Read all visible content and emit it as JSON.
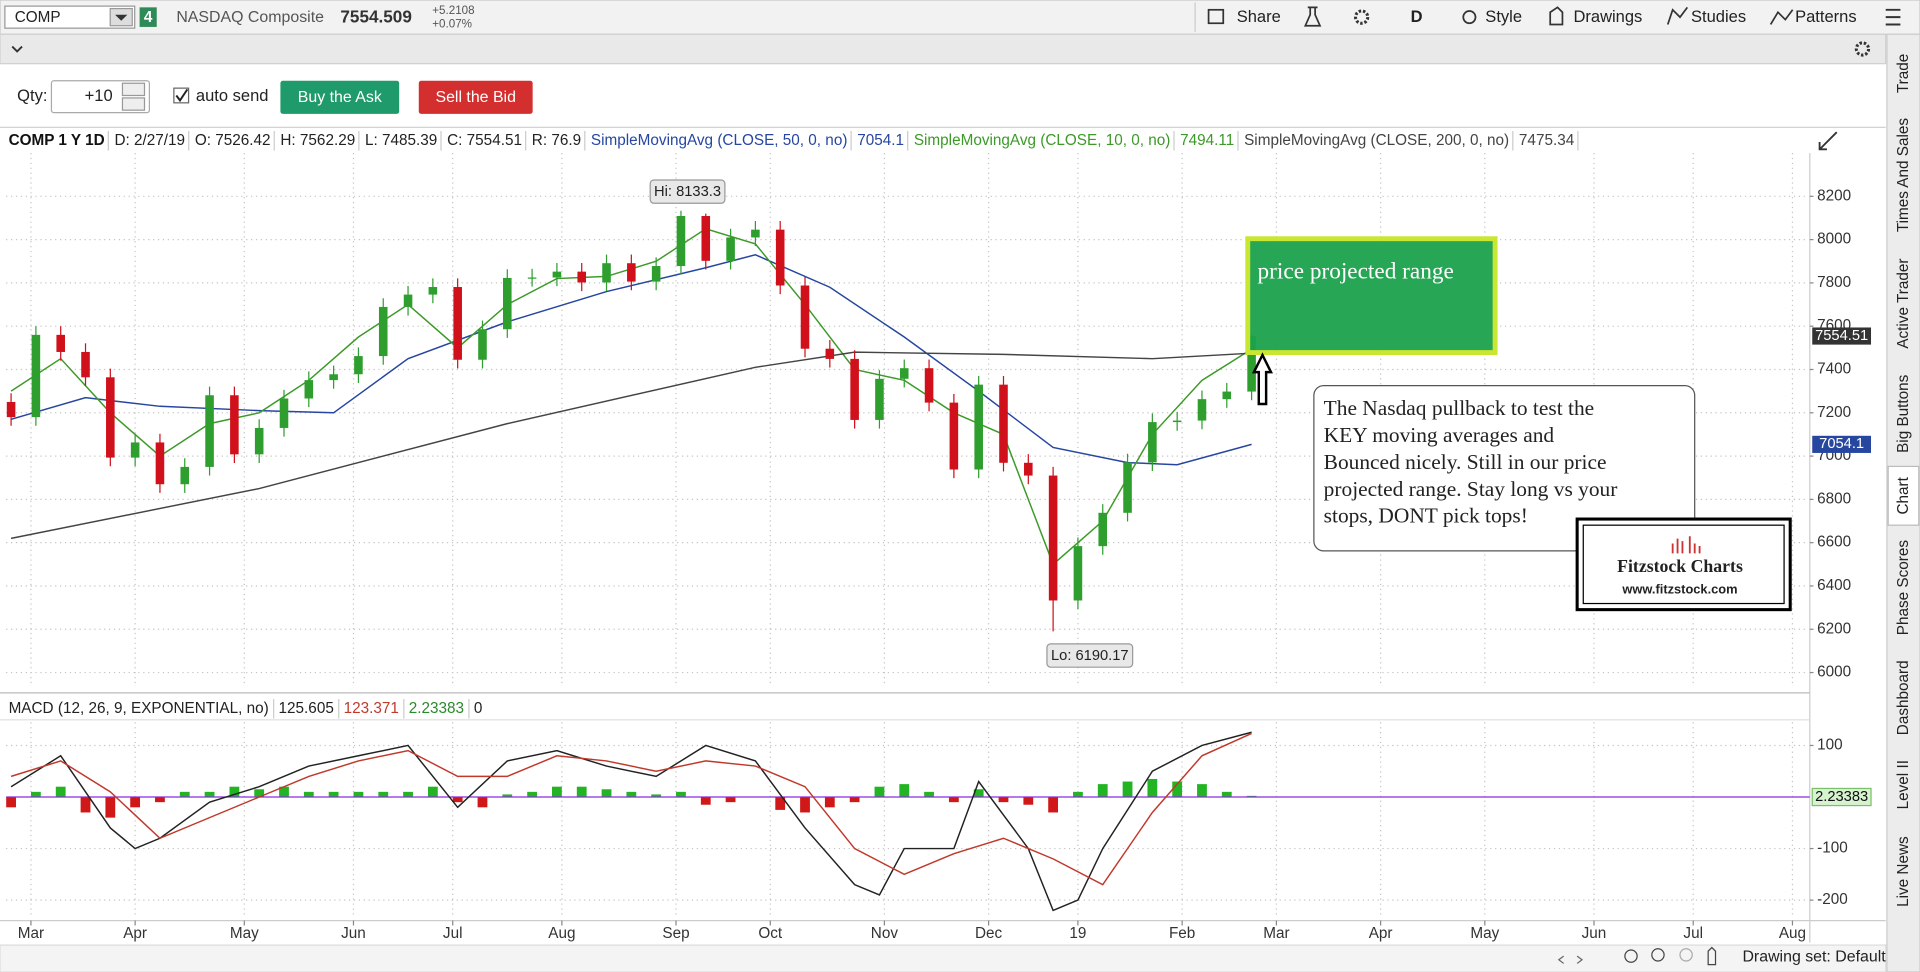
{
  "toolbar": {
    "symbol": "COMP",
    "link": "4",
    "description": "NASDAQ Composite",
    "last": "7554.509",
    "change": "+5.2108",
    "change_pct": "+0.07%",
    "buttons": [
      "Share",
      "D",
      "Style",
      "Drawings",
      "Studies",
      "Patterns"
    ]
  },
  "order_bar": {
    "qty_label": "Qty:",
    "qty": "+10",
    "auto_send": "auto send",
    "buy": "Buy the Ask",
    "sell": "Sell the Bid"
  },
  "side_tabs": [
    "Trade",
    "Times And Sales",
    "Active Trader",
    "Big Buttons",
    "Chart",
    "Phase Scores",
    "Dashboard",
    "Level II",
    "Live News"
  ],
  "drawing_set": "Drawing set: Default",
  "chart_data": [
    {
      "type": "candlestick",
      "title": "COMP 1 Y 1D",
      "info": [
        "D: 2/27/19",
        "O: 7526.42",
        "H: 7562.29",
        "L: 7485.39",
        "C: 7554.51",
        "R: 76.9"
      ],
      "colors": {
        "up": "#2e9e2e",
        "down": "#d0101b"
      },
      "x": [
        0,
        5,
        10,
        15,
        20,
        25,
        30,
        35,
        40,
        45,
        50,
        55,
        60,
        65,
        70,
        75,
        80,
        85,
        90,
        95,
        100,
        105,
        110,
        115,
        120,
        125,
        130,
        135,
        140,
        145,
        150,
        155,
        160,
        165,
        170,
        175,
        180,
        185,
        190,
        195,
        200,
        205,
        210,
        215,
        220,
        225,
        230,
        235,
        240,
        245,
        250
      ],
      "candles": [
        [
          7250,
          7290,
          7140,
          7180
        ],
        [
          7180,
          7600,
          7140,
          7560
        ],
        [
          7560,
          7600,
          7441,
          7481
        ],
        [
          7481,
          7521,
          7324,
          7364
        ],
        [
          7364,
          7404,
          6953,
          6993
        ],
        [
          6993,
          7103,
          6953,
          7063
        ],
        [
          7063,
          7103,
          6830,
          6870
        ],
        [
          6870,
          6990,
          6830,
          6950
        ],
        [
          6950,
          7321,
          6910,
          7281
        ],
        [
          7281,
          7321,
          6968,
          7008
        ],
        [
          7008,
          7170,
          6968,
          7130
        ],
        [
          7130,
          7306,
          7090,
          7266
        ],
        [
          7266,
          7391,
          7226,
          7351
        ],
        [
          7351,
          7418,
          7311,
          7378
        ],
        [
          7378,
          7502,
          7338,
          7462
        ],
        [
          7462,
          7729,
          7422,
          7689
        ],
        [
          7689,
          7786,
          7649,
          7746
        ],
        [
          7746,
          7821,
          7706,
          7781
        ],
        [
          7781,
          7821,
          7405,
          7445
        ],
        [
          7445,
          7626,
          7405,
          7586
        ],
        [
          7586,
          7863,
          7546,
          7823
        ],
        [
          7823,
          7865,
          7783,
          7825
        ],
        [
          7825,
          7892,
          7785,
          7852
        ],
        [
          7852,
          7892,
          7762,
          7802
        ],
        [
          7802,
          7931,
          7762,
          7891
        ],
        [
          7891,
          7931,
          7766,
          7806
        ],
        [
          7806,
          7918,
          7766,
          7878
        ],
        [
          7878,
          8133.3,
          7838,
          8109
        ],
        [
          8109,
          8120,
          7862,
          7902
        ],
        [
          7902,
          8050,
          7862,
          8010
        ],
        [
          8010,
          8086,
          7970,
          8046
        ],
        [
          8046,
          8086,
          7748,
          7788
        ],
        [
          7788,
          7828,
          7456,
          7496
        ],
        [
          7496,
          7536,
          7409,
          7449
        ],
        [
          7449,
          7489,
          7127,
          7167
        ],
        [
          7167,
          7397,
          7127,
          7357
        ],
        [
          7357,
          7446,
          7317,
          7406
        ],
        [
          7406,
          7446,
          7207,
          7247
        ],
        [
          7247,
          7287,
          6898,
          6938
        ],
        [
          6938,
          7370,
          6898,
          7330
        ],
        [
          7330,
          7370,
          6929,
          6969
        ],
        [
          6969,
          7009,
          6870,
          6910
        ],
        [
          6910,
          6950,
          6190.17,
          6333
        ],
        [
          6333,
          6624,
          6293,
          6584
        ],
        [
          6584,
          6778,
          6544,
          6738
        ],
        [
          6738,
          7011,
          6698,
          6971
        ],
        [
          6971,
          7197,
          6931,
          7157
        ],
        [
          7157,
          7204,
          7117,
          7164
        ],
        [
          7164,
          7303,
          7124,
          7263
        ],
        [
          7263,
          7338,
          7223,
          7298
        ],
        [
          7298,
          7562.29,
          7258,
          7554.51
        ]
      ],
      "series": [
        {
          "name": "SimpleMovingAvg (CLOSE, 50, 0, no)",
          "color": "#2646a0",
          "x": [
            0,
            15,
            30,
            50,
            65,
            80,
            100,
            120,
            140,
            150,
            165,
            180,
            195,
            210,
            225,
            235,
            250
          ],
          "values": [
            7170,
            7270,
            7230,
            7210,
            7200,
            7450,
            7620,
            7760,
            7870,
            7930,
            7780,
            7550,
            7300,
            7040,
            6970,
            6960,
            7054.1
          ]
        },
        {
          "name": "SimpleMovingAvg (CLOSE, 10, 0, no)",
          "color": "#3c9a28",
          "x": [
            0,
            10,
            20,
            30,
            40,
            50,
            60,
            70,
            80,
            90,
            100,
            110,
            120,
            130,
            140,
            150,
            160,
            170,
            180,
            190,
            200,
            210,
            220,
            230,
            240,
            250
          ],
          "values": [
            7300,
            7450,
            7200,
            7000,
            7150,
            7200,
            7350,
            7550,
            7700,
            7500,
            7700,
            7820,
            7830,
            7900,
            8050,
            7980,
            7700,
            7400,
            7350,
            7200,
            7100,
            6500,
            6700,
            7100,
            7350,
            7494.11
          ]
        },
        {
          "name": "SimpleMovingAvg (CLOSE, 200, 0, no)",
          "color": "#444444",
          "x": [
            0,
            50,
            100,
            150,
            170,
            200,
            230,
            250
          ],
          "values": [
            6620,
            6850,
            7150,
            7410,
            7480,
            7470,
            7450,
            7475.34
          ]
        }
      ],
      "xlim": [
        -1,
        362
      ],
      "xticks": [
        {
          "value": 4,
          "label": "Mar"
        },
        {
          "value": 25,
          "label": "Apr"
        },
        {
          "value": 47,
          "label": "May"
        },
        {
          "value": 69,
          "label": "Jun"
        },
        {
          "value": 89,
          "label": "Jul"
        },
        {
          "value": 111,
          "label": "Aug"
        },
        {
          "value": 134,
          "label": "Sep"
        },
        {
          "value": 153,
          "label": "Oct"
        },
        {
          "value": 176,
          "label": "Nov"
        },
        {
          "value": 197,
          "label": "Dec"
        },
        {
          "value": 215,
          "label": "19"
        },
        {
          "value": 236,
          "label": "Feb"
        },
        {
          "value": 255,
          "label": "Mar"
        },
        {
          "value": 276,
          "label": "Apr"
        },
        {
          "value": 297,
          "label": "May"
        },
        {
          "value": 319,
          "label": "Jun"
        },
        {
          "value": 339,
          "label": "Jul"
        },
        {
          "value": 359,
          "label": "Aug"
        }
      ],
      "ylim": [
        5940,
        8400
      ],
      "yticks": [
        6000,
        6200,
        6400,
        6600,
        6800,
        7000,
        7200,
        7400,
        7600,
        7800,
        8000,
        8200
      ],
      "grid": true,
      "annotations": {
        "hi": "Hi: 8133.3",
        "lo": "Lo: 6190.17",
        "range_box": "price projected range",
        "note": [
          "The Nasdaq pullback to test the",
          "KEY moving averages and",
          "Bounced nicely.     Still in our price",
          "projected range.  Stay long vs your",
          "stops, DONT pick tops!"
        ],
        "logo": "Fitzstock Charts",
        "logo_url": "www.fitzstock.com"
      }
    },
    {
      "type": "macd",
      "title": "MACD (12, 26, 9, EXPONENTIAL, no)",
      "zero_line": 0,
      "zero_color": "#8a2be2",
      "series": [
        {
          "color": "#222222",
          "x": [
            0,
            10,
            20,
            25,
            30,
            40,
            50,
            60,
            70,
            80,
            90,
            100,
            110,
            120,
            130,
            140,
            150,
            160,
            170,
            175,
            180,
            190,
            195,
            205,
            210,
            215,
            220,
            230,
            240,
            250
          ],
          "values": [
            20,
            80,
            -60,
            -100,
            -80,
            -10,
            20,
            60,
            80,
            100,
            -20,
            70,
            90,
            60,
            40,
            100,
            70,
            -60,
            -170,
            -190,
            -100,
            -100,
            30,
            -100,
            -220,
            -200,
            -100,
            50,
            100,
            125.605
          ]
        },
        {
          "color": "#c0392b",
          "x": [
            0,
            10,
            20,
            30,
            40,
            50,
            60,
            70,
            80,
            90,
            100,
            110,
            120,
            130,
            140,
            150,
            160,
            170,
            180,
            190,
            200,
            210,
            220,
            230,
            240,
            250
          ],
          "values": [
            40,
            70,
            10,
            -80,
            -40,
            0,
            40,
            70,
            90,
            40,
            40,
            80,
            70,
            50,
            70,
            60,
            20,
            -100,
            -150,
            -110,
            -80,
            -120,
            -170,
            -30,
            80,
            123.371
          ]
        }
      ],
      "histogram": {
        "up_color": "#22b422",
        "down_color": "#d01818",
        "x": [
          0,
          5,
          10,
          15,
          20,
          25,
          30,
          35,
          40,
          45,
          50,
          55,
          60,
          65,
          70,
          75,
          80,
          85,
          90,
          95,
          100,
          105,
          110,
          115,
          120,
          125,
          130,
          135,
          140,
          145,
          150,
          155,
          160,
          165,
          170,
          175,
          180,
          185,
          190,
          195,
          200,
          205,
          210,
          215,
          220,
          225,
          230,
          235,
          240,
          245,
          250
        ],
        "values": [
          -20,
          10,
          20,
          -30,
          -40,
          -20,
          -10,
          10,
          10,
          20,
          15,
          20,
          10,
          10,
          10,
          10,
          10,
          20,
          -10,
          -20,
          5,
          10,
          20,
          20,
          15,
          10,
          5,
          10,
          -15,
          -10,
          0,
          -25,
          -30,
          -20,
          -10,
          20,
          25,
          10,
          -10,
          15,
          -10,
          -15,
          -30,
          10,
          25,
          30,
          35,
          30,
          25,
          10,
          2.23383
        ]
      },
      "ylim": [
        -235,
        145
      ],
      "yticks": [
        100,
        -100,
        -200
      ]
    }
  ]
}
